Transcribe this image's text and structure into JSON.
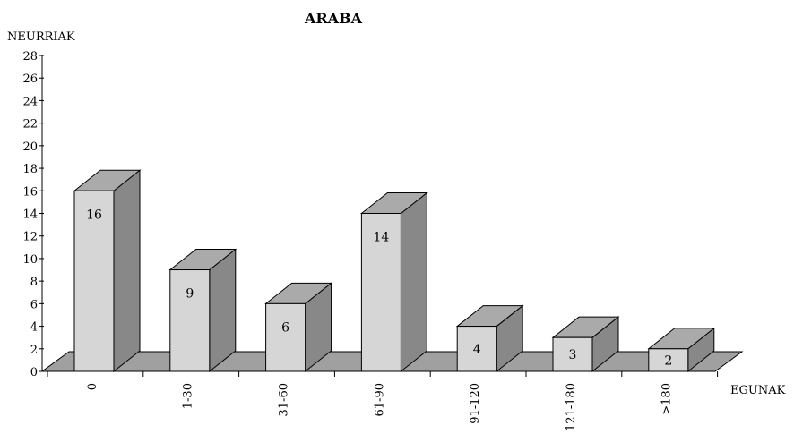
{
  "chart_data": {
    "type": "bar",
    "title": "ARABA",
    "ylabel": "NEURRIAK",
    "xlabel": "EGUNAK",
    "categories": [
      "0",
      "1-30",
      "31-60",
      "61-90",
      "91-120",
      "121-180",
      ">180"
    ],
    "values": [
      16,
      9,
      6,
      14,
      4,
      3,
      2
    ],
    "ylim": [
      0,
      28
    ],
    "yticks": [
      "0",
      "2",
      "4",
      "6",
      "8",
      "10",
      "12",
      "14",
      "16",
      "18",
      "20",
      "22",
      "24",
      "26",
      "28"
    ],
    "three_d": true,
    "grid": false,
    "legend": "none",
    "colors": {
      "bar_front": "#d6d6d6",
      "bar_top": "#aaaaaa",
      "bar_side": "#888888",
      "floor": "#a0a0a0",
      "outline": "#000000"
    }
  }
}
